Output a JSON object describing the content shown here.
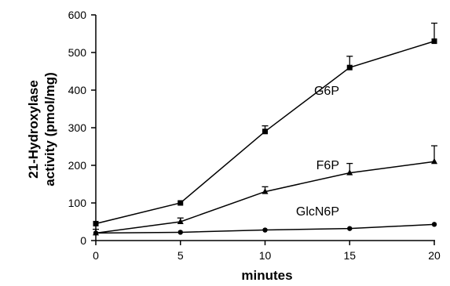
{
  "chart_data": {
    "type": "line",
    "title": "",
    "xlabel": "minutes",
    "ylabel_lines": [
      "21-Hydroxylase",
      "activity (pmol/mg)"
    ],
    "x": [
      0,
      5,
      10,
      15,
      20
    ],
    "xlim": [
      0,
      20
    ],
    "ylim": [
      0,
      600
    ],
    "x_ticks": [
      "0",
      "5",
      "10",
      "15",
      "20"
    ],
    "y_ticks": [
      "0",
      "100",
      "200",
      "300",
      "400",
      "500",
      "600"
    ],
    "grid": false,
    "legend": "none",
    "series": [
      {
        "name": "G6P",
        "marker": "square",
        "values": [
          45,
          100,
          290,
          460,
          530
        ],
        "errors": [
          0,
          0,
          15,
          30,
          48
        ]
      },
      {
        "name": "F6P",
        "marker": "triangle",
        "values": [
          20,
          50,
          130,
          180,
          210
        ],
        "errors": [
          10,
          10,
          13,
          25,
          42
        ]
      },
      {
        "name": "GlcN6P",
        "marker": "circle",
        "values": [
          20,
          22,
          28,
          32,
          43
        ],
        "errors": [
          0,
          0,
          0,
          0,
          0
        ]
      }
    ]
  }
}
